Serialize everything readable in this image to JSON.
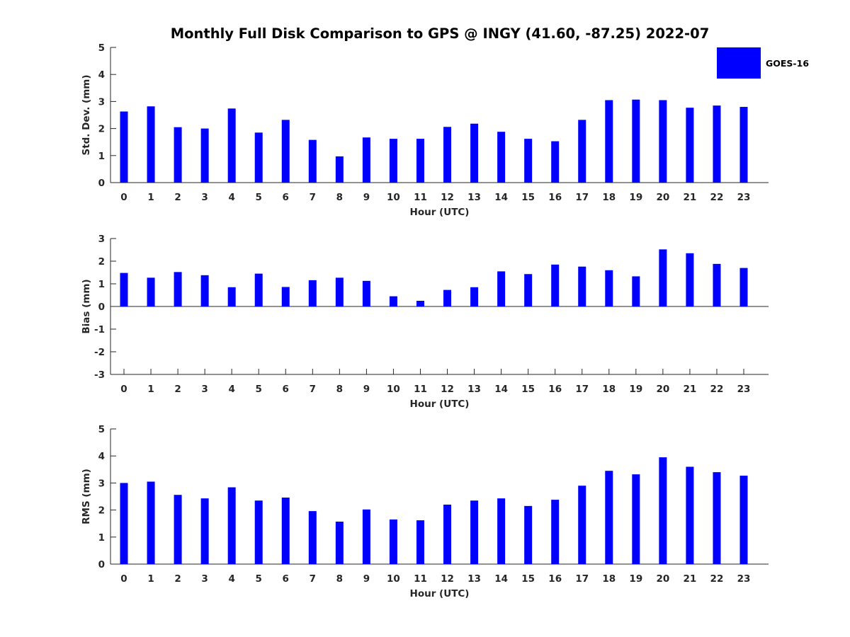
{
  "title": "Monthly Full Disk Comparison to GPS @ INGY (41.60, -87.25) 2022-07",
  "legend": {
    "label": "GOES-16",
    "color": "#0000ff",
    "placement": "top-right"
  },
  "chart_data": [
    {
      "type": "bar",
      "categories": [
        "0",
        "1",
        "2",
        "3",
        "4",
        "5",
        "6",
        "7",
        "8",
        "9",
        "10",
        "11",
        "12",
        "13",
        "14",
        "15",
        "16",
        "17",
        "18",
        "19",
        "20",
        "21",
        "22",
        "23"
      ],
      "series": [
        {
          "name": "GOES-16",
          "values": [
            2.63,
            2.82,
            2.05,
            2.0,
            2.74,
            1.85,
            2.32,
            1.58,
            0.97,
            1.67,
            1.62,
            1.62,
            2.06,
            2.18,
            1.88,
            1.62,
            1.53,
            2.32,
            3.05,
            3.07,
            3.05,
            2.77,
            2.85,
            2.8
          ]
        }
      ],
      "xlabel": "Hour (UTC)",
      "ylabel": "Std. Dev. (mm)",
      "ylim": [
        0,
        5
      ],
      "yticks": [
        "0",
        "1",
        "2",
        "3",
        "4",
        "5"
      ],
      "grid": false
    },
    {
      "type": "bar",
      "categories": [
        "0",
        "1",
        "2",
        "3",
        "4",
        "5",
        "6",
        "7",
        "8",
        "9",
        "10",
        "11",
        "12",
        "13",
        "14",
        "15",
        "16",
        "17",
        "18",
        "19",
        "20",
        "21",
        "22",
        "23"
      ],
      "series": [
        {
          "name": "GOES-16",
          "values": [
            1.48,
            1.27,
            1.52,
            1.38,
            0.85,
            1.45,
            0.86,
            1.16,
            1.27,
            1.13,
            0.45,
            0.25,
            0.73,
            0.85,
            1.55,
            1.43,
            1.85,
            1.76,
            1.6,
            1.33,
            2.52,
            2.35,
            1.88,
            1.7
          ]
        }
      ],
      "xlabel": "Hour (UTC)",
      "ylabel": "Bias (mm)",
      "ylim": [
        -3,
        3
      ],
      "yticks": [
        "-3",
        "-2",
        "-1",
        "0",
        "1",
        "2",
        "3"
      ],
      "grid": false
    },
    {
      "type": "bar",
      "categories": [
        "0",
        "1",
        "2",
        "3",
        "4",
        "5",
        "6",
        "7",
        "8",
        "9",
        "10",
        "11",
        "12",
        "13",
        "14",
        "15",
        "16",
        "17",
        "18",
        "19",
        "20",
        "21",
        "22",
        "23"
      ],
      "series": [
        {
          "name": "GOES-16",
          "values": [
            3.0,
            3.05,
            2.56,
            2.43,
            2.84,
            2.35,
            2.46,
            1.96,
            1.57,
            2.02,
            1.65,
            1.62,
            2.2,
            2.35,
            2.43,
            2.15,
            2.38,
            2.9,
            3.45,
            3.32,
            3.95,
            3.6,
            3.4,
            3.27
          ]
        }
      ],
      "xlabel": "Hour (UTC)",
      "ylabel": "RMS (mm)",
      "ylim": [
        0,
        5
      ],
      "yticks": [
        "0",
        "1",
        "2",
        "3",
        "4",
        "5"
      ],
      "grid": false
    }
  ]
}
